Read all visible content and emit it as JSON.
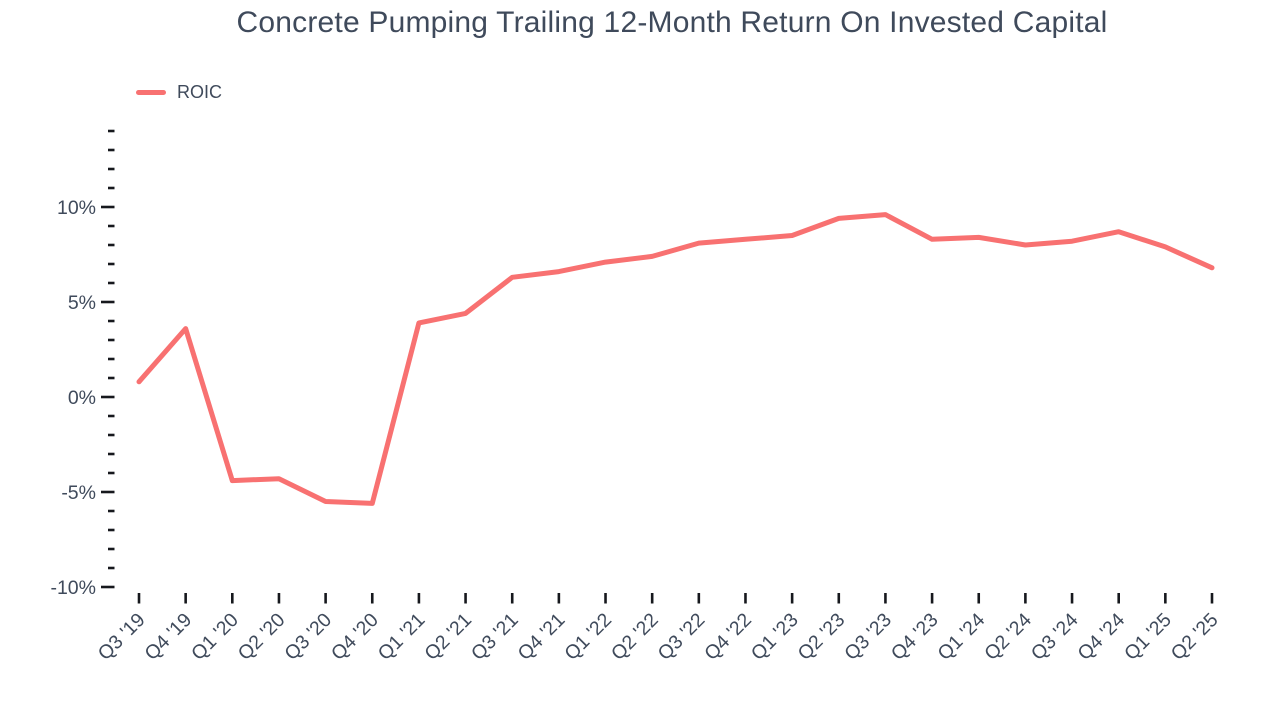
{
  "chart_data": {
    "type": "line",
    "title": "Concrete Pumping Trailing 12-Month Return On Invested Capital",
    "categories": [
      "Q3 '19",
      "Q4 '19",
      "Q1 '20",
      "Q2 '20",
      "Q3 '20",
      "Q4 '20",
      "Q1 '21",
      "Q2 '21",
      "Q3 '21",
      "Q4 '21",
      "Q1 '22",
      "Q2 '22",
      "Q3 '22",
      "Q4 '22",
      "Q1 '23",
      "Q2 '23",
      "Q3 '23",
      "Q4 '23",
      "Q1 '24",
      "Q2 '24",
      "Q3 '24",
      "Q4 '24",
      "Q1 '25",
      "Q2 '25"
    ],
    "series": [
      {
        "name": "ROIC",
        "color": "#f87171",
        "values": [
          0.8,
          3.6,
          -4.4,
          -4.3,
          -5.5,
          -5.6,
          3.9,
          4.4,
          6.3,
          6.6,
          7.1,
          7.4,
          8.1,
          8.3,
          8.5,
          9.4,
          9.6,
          8.3,
          8.4,
          8.0,
          8.2,
          8.7,
          7.9,
          6.8
        ]
      }
    ],
    "xlabel": "",
    "ylabel": "",
    "y_axis": {
      "min": -10,
      "max": 14,
      "minor_step": 1,
      "major_step": 5,
      "unit": "%",
      "tick_labels": [
        "10%",
        "5%",
        "0%",
        "-5%",
        "-10%"
      ]
    },
    "grid": false,
    "legend_position": "top-left"
  },
  "colors": {
    "accent": "#f87171",
    "text": "#3f4a5b",
    "tick": "#16181d",
    "background": "#ffffff"
  }
}
